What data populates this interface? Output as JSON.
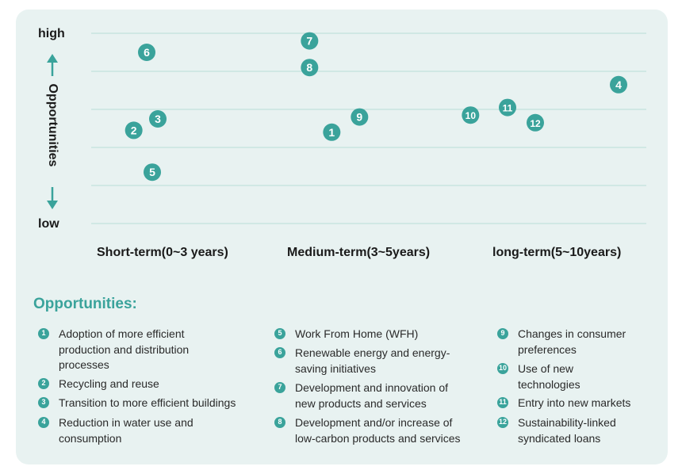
{
  "chart_data": {
    "type": "scatter",
    "y_axis": {
      "title": "Opportunities",
      "high_label": "high",
      "low_label": "low"
    },
    "x_categories": [
      "Short-term(0~3 years)",
      "Medium-term(3~5years)",
      "long-term(5~10years)"
    ],
    "grid": true,
    "point_color": "#3aa39b",
    "points": [
      {
        "id": "1",
        "x": 1.3,
        "y": 2.4
      },
      {
        "id": "2",
        "x": 0.23,
        "y": 2.45
      },
      {
        "id": "3",
        "x": 0.36,
        "y": 2.75
      },
      {
        "id": "4",
        "x": 2.85,
        "y": 3.65
      },
      {
        "id": "5",
        "x": 0.33,
        "y": 1.35
      },
      {
        "id": "6",
        "x": 0.3,
        "y": 4.5
      },
      {
        "id": "7",
        "x": 1.18,
        "y": 4.8
      },
      {
        "id": "8",
        "x": 1.18,
        "y": 4.1
      },
      {
        "id": "9",
        "x": 1.45,
        "y": 2.8
      },
      {
        "id": "10",
        "x": 2.05,
        "y": 2.85
      },
      {
        "id": "11",
        "x": 2.25,
        "y": 3.05
      },
      {
        "id": "12",
        "x": 2.4,
        "y": 2.65
      }
    ]
  },
  "legend": {
    "title": "Opportunities:",
    "items": [
      {
        "num": "1",
        "text": "Adoption of more efficient\nproduction and distribution\nprocesses"
      },
      {
        "num": "2",
        "text": "Recycling and reuse"
      },
      {
        "num": "3",
        "text": "Transition to more efficient buildings"
      },
      {
        "num": "4",
        "text": "Reduction in water use and\nconsumption"
      },
      {
        "num": "5",
        "text": "Work From Home (WFH)"
      },
      {
        "num": "6",
        "text": "Renewable energy and energy-\nsaving initiatives"
      },
      {
        "num": "7",
        "text": "Development and innovation of\nnew products and services"
      },
      {
        "num": "8",
        "text": "Development and/or increase of\nlow-carbon products and services"
      },
      {
        "num": "9",
        "text": "Changes in consumer\npreferences"
      },
      {
        "num": "10",
        "text": "Use of new\ntechnologies"
      },
      {
        "num": "11",
        "text": "Entry into new markets"
      },
      {
        "num": "12",
        "text": "Sustainability-linked\nsyndicated loans"
      }
    ]
  }
}
